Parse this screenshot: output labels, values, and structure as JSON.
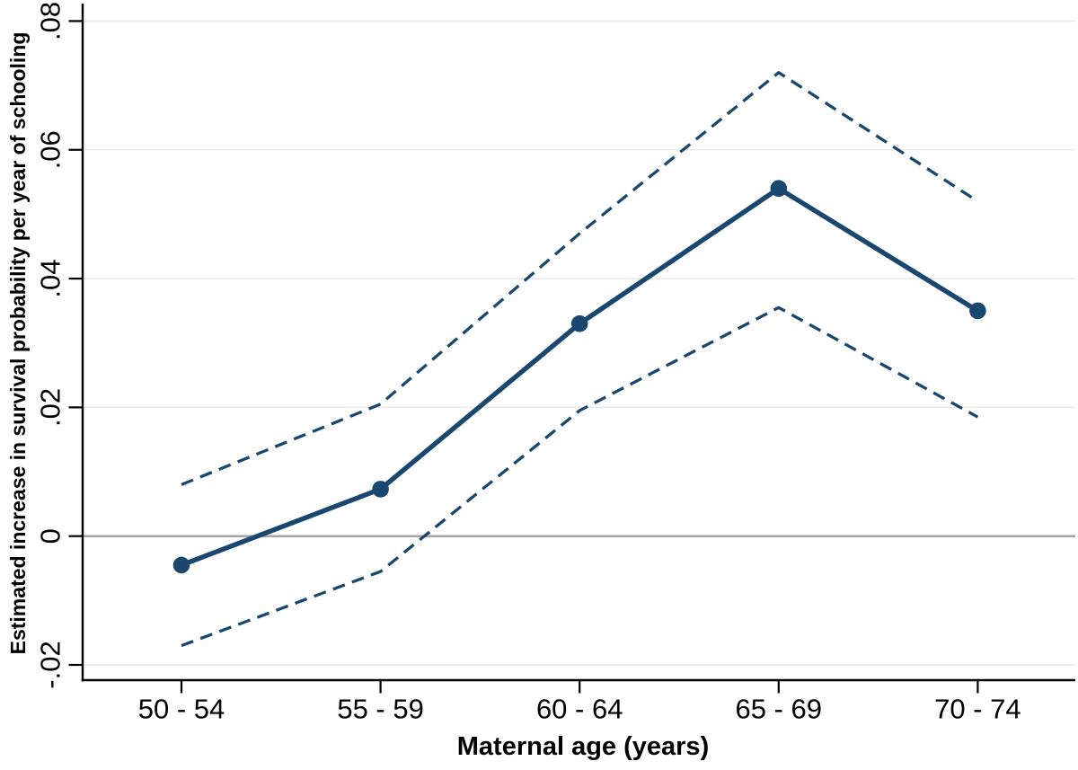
{
  "figure": {
    "background": "#ffffff"
  },
  "chart_data": {
    "type": "line",
    "title": "",
    "xlabel": "Maternal age (years)",
    "ylabel": "Estimated increase in survival probability per year of schooling",
    "categories": [
      "50 - 54",
      "55 - 59",
      "60 - 64",
      "65 - 69",
      "70 - 74"
    ],
    "series": [
      {
        "name": "upper-dashed-bound",
        "style": "dashed",
        "marker": "none",
        "color": "#1a476f",
        "values": [
          0.008,
          0.0205,
          0.047,
          0.072,
          0.052
        ]
      },
      {
        "name": "lower-dashed-bound",
        "style": "dashed",
        "marker": "none",
        "color": "#1a476f",
        "values": [
          -0.017,
          -0.0055,
          0.0195,
          0.0355,
          0.0185
        ]
      },
      {
        "name": "point-estimate",
        "style": "solid",
        "marker": "circle",
        "color": "#1a476f",
        "values": [
          -0.0045,
          0.0073,
          0.033,
          0.054,
          0.035
        ]
      }
    ],
    "y_ticks": [
      {
        "value": 0.08,
        "label": ".08"
      },
      {
        "value": 0.06,
        "label": ".06"
      },
      {
        "value": 0.04,
        "label": ".04"
      },
      {
        "value": 0.02,
        "label": ".02"
      },
      {
        "value": 0,
        "label": "0"
      },
      {
        "value": -0.02,
        "label": "-.02"
      }
    ],
    "ylim": [
      -0.0224,
      0.0826
    ],
    "grid": "horizontal",
    "legend": "none",
    "colors": {
      "series": "#1a476f",
      "gridline": "#e8e8e8",
      "zero_line": "#a6a6a6",
      "axis": "#000000",
      "background": "#ffffff"
    },
    "zero_line": true
  }
}
